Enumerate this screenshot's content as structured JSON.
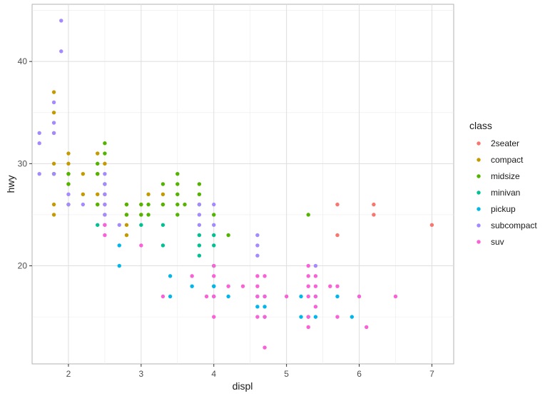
{
  "chart_data": {
    "type": "scatter",
    "xlabel": "displ",
    "ylabel": "hwy",
    "xlim": [
      1.5,
      7.3
    ],
    "ylim": [
      10.4,
      45.6
    ],
    "x_ticks": [
      2,
      3,
      4,
      5,
      6,
      7
    ],
    "y_ticks": [
      20,
      30,
      40
    ],
    "grid": true,
    "legend": {
      "title": "class",
      "placement": "right"
    },
    "series": [
      {
        "name": "2seater",
        "color": "#F8766D",
        "points": [
          [
            5.7,
            26
          ],
          [
            5.7,
            23
          ],
          [
            6.2,
            26
          ],
          [
            6.2,
            25
          ],
          [
            7.0,
            24
          ]
        ]
      },
      {
        "name": "compact",
        "color": "#C49A00",
        "points": [
          [
            1.8,
            37
          ],
          [
            1.8,
            35
          ],
          [
            1.8,
            33
          ],
          [
            1.8,
            30
          ],
          [
            1.8,
            29
          ],
          [
            1.8,
            26
          ],
          [
            1.8,
            25
          ],
          [
            2.0,
            31
          ],
          [
            2.0,
            30
          ],
          [
            2.0,
            29
          ],
          [
            2.0,
            28
          ],
          [
            2.2,
            29
          ],
          [
            2.2,
            27
          ],
          [
            2.4,
            31
          ],
          [
            2.4,
            29
          ],
          [
            2.4,
            27
          ],
          [
            2.4,
            26
          ],
          [
            2.5,
            30
          ],
          [
            2.5,
            27
          ],
          [
            2.5,
            26
          ],
          [
            2.5,
            25
          ],
          [
            2.8,
            26
          ],
          [
            2.8,
            25
          ],
          [
            2.8,
            24
          ],
          [
            2.8,
            23
          ],
          [
            3.0,
            26
          ],
          [
            3.0,
            25
          ],
          [
            3.1,
            27
          ],
          [
            3.3,
            27
          ],
          [
            3.3,
            26
          ]
        ]
      },
      {
        "name": "midsize",
        "color": "#53B400",
        "points": [
          [
            1.8,
            29
          ],
          [
            2.0,
            29
          ],
          [
            2.0,
            28
          ],
          [
            2.0,
            26
          ],
          [
            2.4,
            30
          ],
          [
            2.4,
            29
          ],
          [
            2.4,
            26
          ],
          [
            2.5,
            32
          ],
          [
            2.5,
            31
          ],
          [
            2.5,
            28
          ],
          [
            2.8,
            26
          ],
          [
            2.8,
            25
          ],
          [
            3.0,
            26
          ],
          [
            3.0,
            25
          ],
          [
            3.1,
            26
          ],
          [
            3.1,
            25
          ],
          [
            3.3,
            28
          ],
          [
            3.3,
            26
          ],
          [
            3.5,
            29
          ],
          [
            3.5,
            28
          ],
          [
            3.5,
            27
          ],
          [
            3.5,
            26
          ],
          [
            3.5,
            25
          ],
          [
            3.6,
            26
          ],
          [
            3.8,
            28
          ],
          [
            3.8,
            27
          ],
          [
            3.8,
            26
          ],
          [
            4.0,
            25
          ],
          [
            4.2,
            23
          ],
          [
            5.3,
            25
          ]
        ]
      },
      {
        "name": "minivan",
        "color": "#00C094",
        "points": [
          [
            2.4,
            24
          ],
          [
            3.0,
            24
          ],
          [
            3.3,
            24
          ],
          [
            3.3,
            22
          ],
          [
            3.8,
            23
          ],
          [
            3.8,
            22
          ],
          [
            3.8,
            21
          ],
          [
            4.0,
            23
          ],
          [
            4.0,
            22
          ],
          [
            4.0,
            20
          ],
          [
            4.0,
            18
          ]
        ]
      },
      {
        "name": "pickup",
        "color": "#00B6EB",
        "points": [
          [
            2.7,
            22
          ],
          [
            2.7,
            20
          ],
          [
            3.4,
            19
          ],
          [
            3.4,
            17
          ],
          [
            3.7,
            18
          ],
          [
            4.0,
            17
          ],
          [
            4.0,
            18
          ],
          [
            4.2,
            17
          ],
          [
            4.6,
            17
          ],
          [
            4.6,
            16
          ],
          [
            4.7,
            17
          ],
          [
            4.7,
            16
          ],
          [
            4.7,
            15
          ],
          [
            5.2,
            17
          ],
          [
            5.2,
            15
          ],
          [
            5.3,
            15
          ],
          [
            5.4,
            17
          ],
          [
            5.4,
            15
          ],
          [
            5.7,
            17
          ],
          [
            5.9,
            15
          ]
        ]
      },
      {
        "name": "subcompact",
        "color": "#A58AFF",
        "points": [
          [
            1.6,
            33
          ],
          [
            1.6,
            32
          ],
          [
            1.6,
            29
          ],
          [
            1.8,
            36
          ],
          [
            1.8,
            34
          ],
          [
            1.8,
            33
          ],
          [
            1.8,
            29
          ],
          [
            1.9,
            44
          ],
          [
            1.9,
            41
          ],
          [
            2.0,
            27
          ],
          [
            2.0,
            26
          ],
          [
            2.2,
            26
          ],
          [
            2.5,
            29
          ],
          [
            2.5,
            28
          ],
          [
            2.5,
            27
          ],
          [
            2.5,
            26
          ],
          [
            2.5,
            25
          ],
          [
            2.5,
            24
          ],
          [
            2.7,
            24
          ],
          [
            3.8,
            26
          ],
          [
            3.8,
            25
          ],
          [
            3.8,
            24
          ],
          [
            4.0,
            26
          ],
          [
            4.0,
            24
          ],
          [
            4.6,
            23
          ],
          [
            4.6,
            22
          ],
          [
            4.6,
            21
          ],
          [
            5.4,
            20
          ]
        ]
      },
      {
        "name": "suv",
        "color": "#FB61D7",
        "points": [
          [
            2.5,
            24
          ],
          [
            2.5,
            23
          ],
          [
            3.0,
            22
          ],
          [
            3.3,
            17
          ],
          [
            3.7,
            19
          ],
          [
            3.9,
            17
          ],
          [
            4.0,
            20
          ],
          [
            4.0,
            19
          ],
          [
            4.0,
            17
          ],
          [
            4.0,
            15
          ],
          [
            4.2,
            18
          ],
          [
            4.4,
            18
          ],
          [
            4.6,
            19
          ],
          [
            4.6,
            18
          ],
          [
            4.6,
            17
          ],
          [
            4.6,
            15
          ],
          [
            4.7,
            19
          ],
          [
            4.7,
            17
          ],
          [
            4.7,
            15
          ],
          [
            4.7,
            12
          ],
          [
            5.0,
            17
          ],
          [
            5.3,
            20
          ],
          [
            5.3,
            19
          ],
          [
            5.3,
            18
          ],
          [
            5.3,
            17
          ],
          [
            5.3,
            15
          ],
          [
            5.3,
            14
          ],
          [
            5.4,
            19
          ],
          [
            5.4,
            18
          ],
          [
            5.4,
            17
          ],
          [
            5.4,
            16
          ],
          [
            5.6,
            18
          ],
          [
            5.7,
            18
          ],
          [
            5.7,
            15
          ],
          [
            6.0,
            17
          ],
          [
            6.1,
            14
          ],
          [
            6.5,
            17
          ]
        ]
      }
    ]
  }
}
